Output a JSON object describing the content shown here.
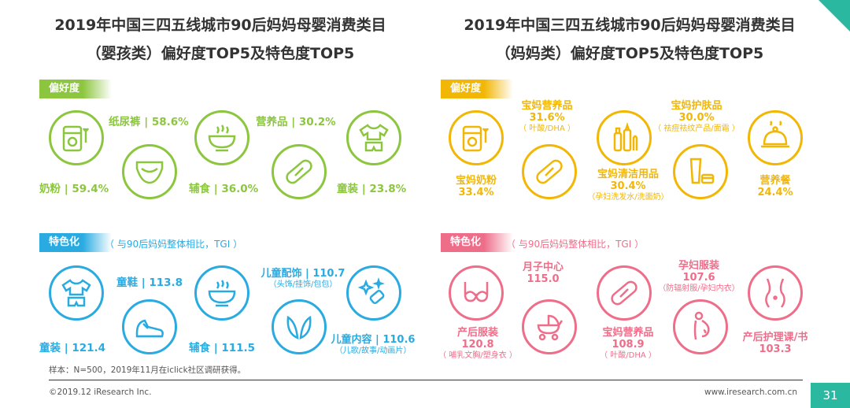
{
  "left": {
    "title1": "2019年中国三四五线城市90后妈妈母婴消费类目",
    "title2": "（婴孩类）偏好度TOP5及特色度TOP5",
    "preference_tag": "偏好度",
    "characteristic_tag": "特色化",
    "characteristic_note": "（ 与90后妈妈整体相比，TGI ）",
    "preference_items": [
      {
        "label": "纸尿裤 | 58.6%"
      },
      {
        "label": "营养品 | 30.2%"
      },
      {
        "label": "奶粉 | 59.4%"
      },
      {
        "label": "辅食 | 36.0%"
      },
      {
        "label": "童装 | 23.8%"
      }
    ],
    "characteristic_items": [
      {
        "label": "童鞋 | 113.8"
      },
      {
        "label": "儿童配饰 | 110.7",
        "sub": "（头饰/挂饰/包包）"
      },
      {
        "label": "童装 | 121.4"
      },
      {
        "label": "辅食 | 111.5"
      },
      {
        "label": "儿童内容 | 110.6",
        "sub": "（儿歌/故事/动画片）"
      }
    ]
  },
  "right": {
    "title1": "2019年中国三四五线城市90后妈妈母婴消费类目",
    "title2": "（妈妈类）偏好度TOP5及特色度TOP5",
    "preference_tag": "偏好度",
    "characteristic_tag": "特色化",
    "characteristic_note": "（ 与90后妈妈整体相比，TGI ）",
    "preference_items": [
      {
        "label": "宝妈营养品",
        "value": "31.6%",
        "sub": "（ 叶酸/DHA ）"
      },
      {
        "label": "宝妈护肤品",
        "value": "30.0%",
        "sub": "（ 祛痘祛纹产品/面霜 ）"
      },
      {
        "label": "宝妈奶粉",
        "value": "33.4%"
      },
      {
        "label": "宝妈清洁用品",
        "value": "30.4%",
        "sub": "（孕妇洗发水/洗面奶）"
      },
      {
        "label": "营养餐",
        "value": "24.4%"
      }
    ],
    "characteristic_items": [
      {
        "label": "月子中心",
        "value": "115.0"
      },
      {
        "label": "孕妇服装",
        "value": "107.6",
        "sub": "（防辐射服/孕妇内衣）"
      },
      {
        "label": "产后服装",
        "value": "120.8",
        "sub": "（ 哺乳文胸/塑身衣 ）"
      },
      {
        "label": "宝妈营养品",
        "value": "108.9",
        "sub": "（ 叶酸/DHA ）"
      },
      {
        "label": "产后护理课/书",
        "value": "103.3"
      }
    ]
  },
  "footer": {
    "sample_note": "样本：N=500，2019年11月在iclick社区调研获得。",
    "copyright": "©2019.12 iResearch Inc.",
    "website": "www.iresearch.com.cn",
    "page_number": "31"
  },
  "colors": {
    "green": "#8cc63f",
    "blue": "#29abe2",
    "yellow": "#f2b705",
    "pink": "#ee6e8a",
    "page_number_bg": "#2bb8a0"
  },
  "icons": {
    "left_preference": [
      "milk-powder-can-icon",
      "diaper-icon",
      "food-bowl-icon",
      "medicine-capsule-icon",
      "baby-clothes-icon"
    ],
    "left_characteristic": [
      "baby-clothes-icon",
      "baby-shoe-icon",
      "food-bowl-icon",
      "rabbit-ears-icon",
      "sparkle-toy-icon"
    ],
    "right_preference": [
      "milk-powder-can-icon",
      "capsule-icon",
      "cosmetics-icon",
      "cleansing-bottle-icon",
      "food-cloche-icon"
    ],
    "right_characteristic": [
      "nursing-bra-icon",
      "baby-stroller-icon",
      "capsule-icon",
      "pregnant-woman-icon",
      "body-shape-icon"
    ]
  }
}
